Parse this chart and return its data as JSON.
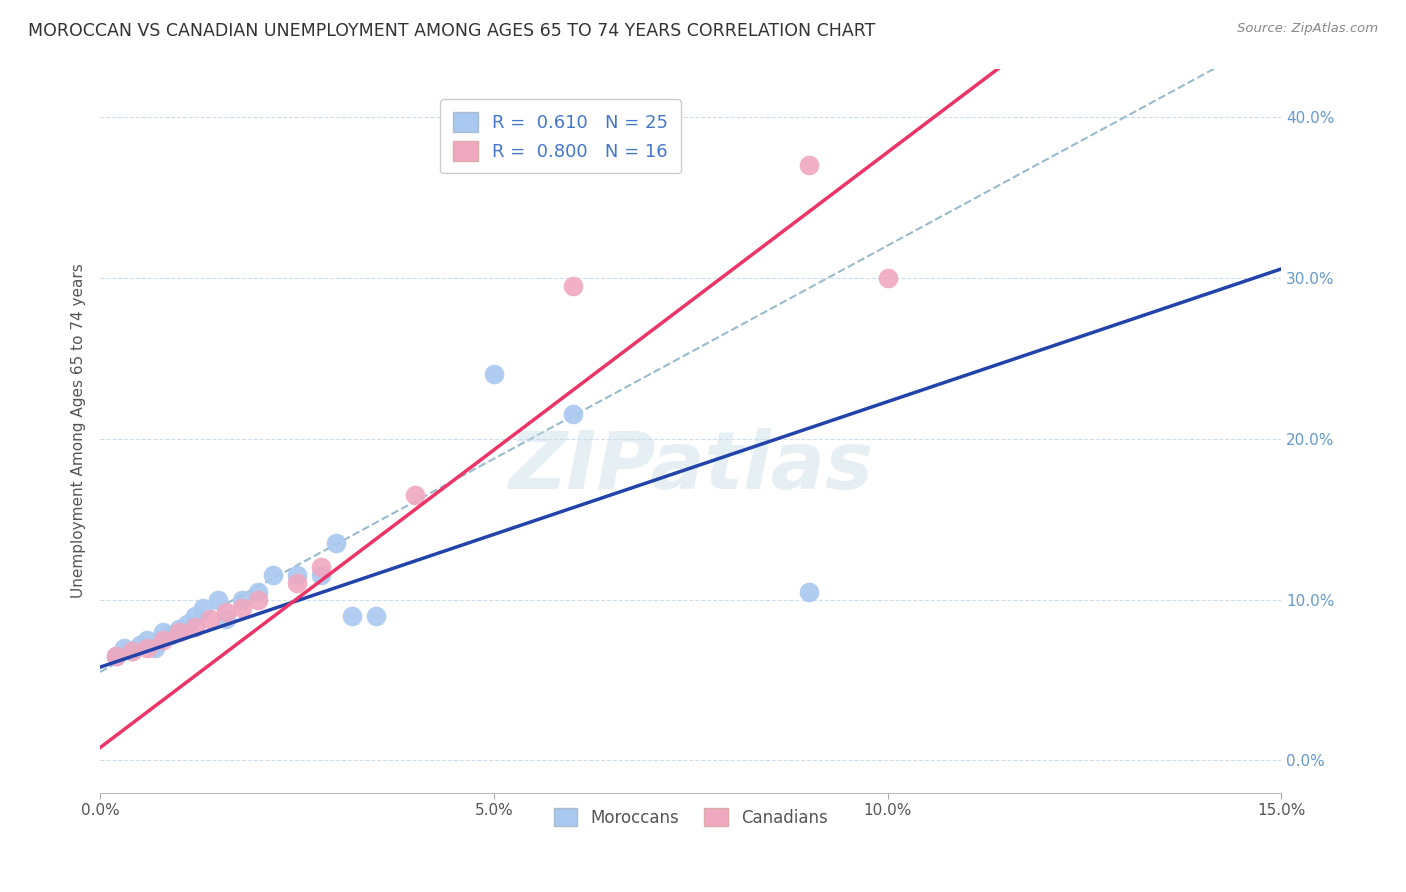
{
  "title": "MOROCCAN VS CANADIAN UNEMPLOYMENT AMONG AGES 65 TO 74 YEARS CORRELATION CHART",
  "source": "Source: ZipAtlas.com",
  "ylabel": "Unemployment Among Ages 65 to 74 years",
  "xlim": [
    0.0,
    0.15
  ],
  "ylim": [
    -0.02,
    0.43
  ],
  "x_ticks": [
    0.0,
    0.05,
    0.1,
    0.15
  ],
  "x_tick_labels": [
    "0.0%",
    "5.0%",
    "10.0%",
    "15.0%"
  ],
  "y_ticks_right": [
    0.0,
    0.1,
    0.2,
    0.3,
    0.4
  ],
  "y_tick_labels_right": [
    "0.0%",
    "10.0%",
    "20.0%",
    "30.0%",
    "40.0%"
  ],
  "moroccan_color": "#a8c8f0",
  "canadian_color": "#f0a8c0",
  "moroccan_line_color": "#2244aa",
  "canadian_line_color": "#ee3366",
  "dashed_line_color": "#99bbcc",
  "legend_moroccan_label": "R =  0.610   N = 25",
  "legend_canadian_label": "R =  0.800   N = 16",
  "bottom_legend_moroccan": "Moroccans",
  "bottom_legend_canadian": "Canadians",
  "watermark": "ZIPatlas",
  "moroccan_x": [
    0.002,
    0.003,
    0.004,
    0.005,
    0.006,
    0.007,
    0.008,
    0.009,
    0.01,
    0.011,
    0.012,
    0.013,
    0.015,
    0.016,
    0.018,
    0.02,
    0.022,
    0.025,
    0.028,
    0.03,
    0.032,
    0.035,
    0.05,
    0.06,
    0.09
  ],
  "moroccan_y": [
    0.065,
    0.07,
    0.068,
    0.072,
    0.075,
    0.07,
    0.08,
    0.078,
    0.082,
    0.085,
    0.09,
    0.095,
    0.1,
    0.088,
    0.1,
    0.105,
    0.115,
    0.115,
    0.115,
    0.135,
    0.09,
    0.09,
    0.24,
    0.215,
    0.105
  ],
  "canadian_x": [
    0.002,
    0.004,
    0.006,
    0.008,
    0.01,
    0.012,
    0.014,
    0.016,
    0.018,
    0.02,
    0.025,
    0.028,
    0.04,
    0.06,
    0.09,
    0.1
  ],
  "canadian_y": [
    0.065,
    0.068,
    0.07,
    0.075,
    0.08,
    0.083,
    0.088,
    0.092,
    0.095,
    0.1,
    0.11,
    0.12,
    0.165,
    0.295,
    0.37,
    0.3
  ],
  "moroccan_slope": 1.65,
  "moroccan_intercept": 0.058,
  "canadian_slope": 3.7,
  "canadian_intercept": 0.008,
  "dashed_slope": 2.65,
  "dashed_intercept": 0.055
}
